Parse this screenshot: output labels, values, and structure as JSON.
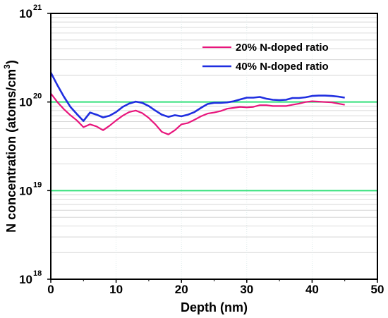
{
  "chart_data": {
    "type": "line",
    "title": "",
    "xlabel": "Depth (nm)",
    "ylabel": "N concentration (atoms/cm³)",
    "ylabel_main": "N concentration (atoms/cm",
    "ylabel_sup": "3",
    "ylabel_close": ")",
    "x_scale": "linear",
    "y_scale": "log",
    "xlim": [
      0,
      50
    ],
    "ylim": [
      1e+18,
      1e+21
    ],
    "x_ticks": [
      {
        "value": 0,
        "label": "0"
      },
      {
        "value": 10,
        "label": "10"
      },
      {
        "value": 20,
        "label": "20"
      },
      {
        "value": 30,
        "label": "30"
      },
      {
        "value": 40,
        "label": "40"
      },
      {
        "value": 50,
        "label": "50"
      }
    ],
    "y_ticks": [
      {
        "value": 1e+18,
        "base": "10",
        "exp": "18"
      },
      {
        "value": 1e+19,
        "base": "10",
        "exp": "19"
      },
      {
        "value": 1e+20,
        "base": "10",
        "exp": "20"
      },
      {
        "value": 1e+21,
        "base": "10",
        "exp": "21"
      }
    ],
    "grid": true,
    "legend_position": "top-right",
    "reference_lines": [
      {
        "y": 1e+20,
        "color": "#33e07a"
      },
      {
        "y": 1e+19,
        "color": "#33e07a"
      }
    ],
    "series": [
      {
        "name": "20% N-doped ratio",
        "color": "#e8157c",
        "x": [
          0,
          1,
          2,
          3,
          4,
          5,
          6,
          7,
          8,
          9,
          10,
          11,
          12,
          13,
          14,
          15,
          16,
          17,
          18,
          19,
          20,
          21,
          22,
          23,
          24,
          25,
          26,
          27,
          28,
          29,
          30,
          31,
          32,
          33,
          34,
          35,
          36,
          37,
          38,
          39,
          40,
          41,
          42,
          43,
          44,
          45
        ],
        "y": [
          1.25e+20,
          1e+20,
          8.3e+19,
          7.1e+19,
          6.2e+19,
          5.2e+19,
          5.6e+19,
          5.3e+19,
          4.8e+19,
          5.4e+19,
          6.2e+19,
          7e+19,
          7.7e+19,
          8e+19,
          7.5e+19,
          6.6e+19,
          5.6e+19,
          4.6e+19,
          4.3e+19,
          4.8e+19,
          5.6e+19,
          5.8e+19,
          6.3e+19,
          6.9e+19,
          7.4e+19,
          7.6e+19,
          7.9e+19,
          8.4e+19,
          8.6e+19,
          8.8e+19,
          8.7e+19,
          8.8e+19,
          9.2e+19,
          9.2e+19,
          9e+19,
          9e+19,
          9e+19,
          9.3e+19,
          9.6e+19,
          1e+20,
          1.02e+20,
          1.01e+20,
          1e+20,
          9.9e+19,
          9.6e+19,
          9.3e+19
        ]
      },
      {
        "name": "40% N-doped ratio",
        "color": "#1f2ee0",
        "x": [
          0,
          1,
          2,
          3,
          4,
          5,
          6,
          7,
          8,
          9,
          10,
          11,
          12,
          13,
          14,
          15,
          16,
          17,
          18,
          19,
          20,
          21,
          22,
          23,
          24,
          25,
          26,
          27,
          28,
          29,
          30,
          31,
          32,
          33,
          34,
          35,
          36,
          37,
          38,
          39,
          40,
          41,
          42,
          43,
          44,
          45
        ],
        "y": [
          2.15e+20,
          1.55e+20,
          1.15e+20,
          8.8e+19,
          7.3e+19,
          6.1e+19,
          7.6e+19,
          7.2e+19,
          6.7e+19,
          7e+19,
          7.7e+19,
          8.8e+19,
          9.6e+19,
          1.01e+20,
          9.8e+19,
          9e+19,
          8e+19,
          7.2e+19,
          6.8e+19,
          7.1e+19,
          6.9e+19,
          7.2e+19,
          7.7e+19,
          8.6e+19,
          9.5e+19,
          9.8e+19,
          9.8e+19,
          9.9e+19,
          1.02e+20,
          1.07e+20,
          1.12e+20,
          1.12e+20,
          1.14e+20,
          1.09e+20,
          1.06e+20,
          1.05e+20,
          1.06e+20,
          1.11e+20,
          1.11e+20,
          1.13e+20,
          1.17e+20,
          1.18e+20,
          1.18e+20,
          1.17e+20,
          1.15e+20,
          1.12e+20
        ]
      }
    ]
  }
}
